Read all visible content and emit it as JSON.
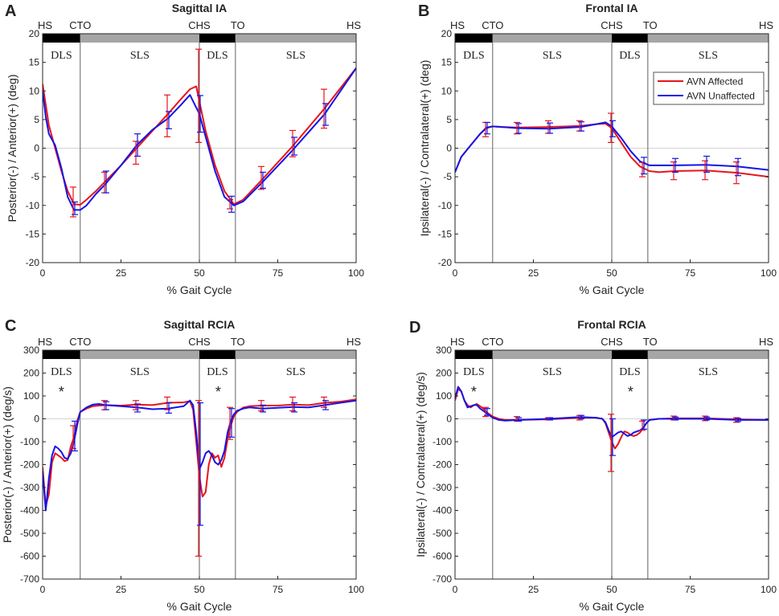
{
  "figure": {
    "x_label": "% Gait Cycle",
    "x_ticks": [
      0,
      25,
      50,
      75,
      100
    ],
    "x_range": [
      0,
      100
    ],
    "event_labels": [
      "HS",
      "CTO",
      "CHS",
      "TO",
      "HS"
    ],
    "event_positions": [
      0,
      12,
      50,
      61.5,
      100
    ],
    "phase_labels": [
      "DLS",
      "SLS",
      "DLS",
      "SLS"
    ],
    "colors": {
      "affected": "#e8141c",
      "unaffected": "#1414e6",
      "dls_bar": "#000000",
      "sls_bar": "#a6a6a6",
      "zero_line": "#d4d4d4"
    }
  },
  "legend": {
    "entries": [
      {
        "label": "AVN Affected",
        "color": "#e8141c"
      },
      {
        "label": "AVN Unaffected",
        "color": "#1414e6"
      }
    ]
  },
  "chart_data": [
    {
      "panel": "A",
      "type": "line",
      "title": "Sagittal IA",
      "xlabel": "% Gait Cycle",
      "ylabel": "Posterior(-) / Anterior(+) (deg)",
      "ylim": [
        -20,
        20
      ],
      "yticks": [
        -20,
        -15,
        -10,
        -5,
        0,
        5,
        10,
        15,
        20
      ],
      "star_annotations": [],
      "series": [
        {
          "name": "AVN Affected",
          "color": "#e8141c",
          "x": [
            0,
            2,
            4,
            6,
            8,
            10,
            12,
            14,
            17,
            20,
            25,
            30,
            35,
            40,
            44,
            47,
            49,
            50,
            52,
            55,
            58,
            61,
            64,
            70,
            80,
            90,
            100
          ],
          "y": [
            11.2,
            4,
            0,
            -4,
            -7.5,
            -9.8,
            -9.9,
            -9,
            -7.5,
            -5.8,
            -3,
            0,
            3,
            6,
            8.5,
            10.3,
            10.8,
            8.2,
            3,
            -3,
            -7.5,
            -9.8,
            -9,
            -5.5,
            0.5,
            7,
            14
          ]
        },
        {
          "name": "AVN Unaffected",
          "color": "#1414e6",
          "x": [
            0,
            1,
            2,
            4,
            6,
            8,
            10,
            12,
            14,
            17,
            20,
            25,
            30,
            35,
            40,
            44,
            47,
            50,
            52,
            55,
            58,
            61,
            64,
            70,
            80,
            90,
            100
          ],
          "y": [
            10,
            5.5,
            2.5,
            0.5,
            -3.5,
            -8.5,
            -10.8,
            -10.8,
            -10,
            -8,
            -6.3,
            -3,
            0.5,
            3.2,
            5.2,
            7.5,
            9.3,
            6,
            2,
            -4,
            -8.5,
            -10,
            -9.3,
            -6,
            -0.2,
            6,
            14
          ]
        }
      ],
      "error_bars": [
        {
          "series": "AVN Affected",
          "x": [
            10,
            20,
            30,
            40,
            50,
            60,
            70,
            80,
            90
          ],
          "y": [
            -9.4,
            -6,
            -0.8,
            5.6,
            9.2,
            -9.8,
            -5.4,
            0.8,
            6.8
          ],
          "lower": [
            -12,
            -7.8,
            -2.8,
            2,
            1,
            -10.6,
            -7.2,
            -1.5,
            3.5
          ],
          "upper": [
            -6.8,
            -4.2,
            1.2,
            9.3,
            17.3,
            -9,
            -3.2,
            3.1,
            10.3
          ]
        },
        {
          "series": "AVN Unaffected",
          "x": [
            10,
            20,
            30,
            40,
            50,
            60,
            70,
            80,
            90
          ],
          "y": [
            -10.6,
            -6.4,
            0.4,
            4.8,
            4.8,
            -9.4,
            -6,
            0.4,
            5.2
          ],
          "lower": [
            -11.6,
            -7.8,
            -1.4,
            3.4,
            2.8,
            -11.2,
            -7,
            -1.2,
            4
          ],
          "upper": [
            -9.4,
            -4,
            2.5,
            6.4,
            9.2,
            -8.4,
            -4.2,
            1.9,
            7.8
          ]
        }
      ]
    },
    {
      "panel": "B",
      "type": "line",
      "title": "Frontal IA",
      "xlabel": "% Gait Cycle",
      "ylabel": "Ipsilateral(-) / Contralateral(+) (deg)",
      "ylim": [
        -20,
        20
      ],
      "yticks": [
        -20,
        -15,
        -10,
        -5,
        0,
        5,
        10,
        15,
        20
      ],
      "star_annotations": [],
      "series": [
        {
          "name": "AVN Affected",
          "color": "#e8141c",
          "x": [
            0,
            2,
            5,
            8,
            10,
            12,
            15,
            20,
            30,
            40,
            45,
            48,
            50,
            53,
            56,
            59,
            62,
            65,
            70,
            80,
            90,
            100
          ],
          "y": [
            -4.2,
            -1.5,
            0.5,
            2.5,
            3.5,
            3.8,
            3.7,
            3.6,
            3.7,
            3.9,
            4.2,
            4.3,
            3.5,
            1,
            -1.5,
            -3.2,
            -4,
            -4.2,
            -4,
            -3.9,
            -4.3,
            -5
          ]
        },
        {
          "name": "AVN Unaffected",
          "color": "#1414e6",
          "x": [
            0,
            2,
            5,
            8,
            10,
            12,
            15,
            20,
            30,
            40,
            45,
            48,
            50,
            53,
            56,
            59,
            62,
            65,
            70,
            80,
            90,
            100
          ],
          "y": [
            -4.2,
            -1.5,
            0.5,
            2.5,
            3.6,
            3.8,
            3.7,
            3.5,
            3.4,
            3.7,
            4.2,
            4.5,
            3.8,
            1.8,
            -0.5,
            -2.3,
            -3,
            -3,
            -3,
            -2.9,
            -3.2,
            -3.8
          ]
        }
      ],
      "error_bars": [
        {
          "series": "AVN Affected",
          "x": [
            10,
            20,
            30,
            40,
            50,
            60,
            70,
            80,
            90
          ],
          "y": [
            3.5,
            3.6,
            3.8,
            3.9,
            3.5,
            -3.8,
            -4,
            -3.9,
            -4.3
          ],
          "lower": [
            2,
            2.5,
            2.6,
            3,
            1,
            -5,
            -5.5,
            -5.5,
            -6.2
          ],
          "upper": [
            4.5,
            4.5,
            4.8,
            4.8,
            6.1,
            -2.5,
            -2.4,
            -2.2,
            -2.4
          ]
        },
        {
          "series": "AVN Unaffected",
          "x": [
            10,
            20,
            30,
            40,
            50,
            60,
            70,
            80,
            90
          ],
          "y": [
            3.6,
            3.5,
            3.4,
            3.7,
            3.8,
            -3,
            -3,
            -2.9,
            -3.2
          ],
          "lower": [
            2.5,
            2.6,
            2.6,
            3,
            2,
            -4.5,
            -4.2,
            -4.2,
            -4.8
          ],
          "upper": [
            4.5,
            4.3,
            4.4,
            4.6,
            4.8,
            -1.6,
            -1.8,
            -1.4,
            -1.8
          ]
        }
      ]
    },
    {
      "panel": "C",
      "type": "line",
      "title": "Sagittal RCIA",
      "xlabel": "% Gait Cycle",
      "ylabel": "Posterior(-) / Anterior(+) (deg/s)",
      "ylim": [
        -700,
        300
      ],
      "yticks": [
        -700,
        -600,
        -500,
        -400,
        -300,
        -200,
        -100,
        0,
        100,
        200,
        300
      ],
      "star_annotations": [
        {
          "x": 6,
          "y": 125,
          "label": "*"
        },
        {
          "x": 56,
          "y": 125,
          "label": "*"
        }
      ],
      "series": [
        {
          "name": "AVN Affected",
          "color": "#e8141c",
          "x": [
            0,
            1,
            2,
            3,
            4,
            5,
            6,
            7,
            8,
            9,
            10,
            11,
            12,
            14,
            16,
            18,
            20,
            25,
            30,
            35,
            40,
            45,
            47,
            48,
            49,
            50,
            51,
            52,
            53,
            54,
            55,
            56,
            57,
            58,
            59,
            60,
            61,
            62,
            64,
            66,
            70,
            75,
            80,
            85,
            90,
            95,
            100
          ],
          "y": [
            -210,
            -380,
            -330,
            -190,
            -150,
            -160,
            -170,
            -185,
            -180,
            -120,
            -80,
            -10,
            30,
            45,
            55,
            58,
            60,
            58,
            62,
            60,
            70,
            72,
            78,
            40,
            -100,
            -250,
            -340,
            -320,
            -200,
            -150,
            -170,
            -160,
            -210,
            -170,
            -90,
            -30,
            10,
            30,
            50,
            55,
            58,
            58,
            62,
            60,
            70,
            75,
            85
          ]
        },
        {
          "name": "AVN Unaffected",
          "color": "#1414e6",
          "x": [
            0,
            1,
            2,
            3,
            4,
            5,
            6,
            7,
            8,
            9,
            10,
            11,
            12,
            14,
            16,
            18,
            20,
            25,
            30,
            35,
            40,
            45,
            47,
            48,
            49,
            50,
            51,
            52,
            53,
            54,
            55,
            56,
            57,
            58,
            59,
            60,
            61,
            62,
            64,
            66,
            70,
            75,
            80,
            85,
            90,
            95,
            100
          ],
          "y": [
            -230,
            -400,
            -260,
            -160,
            -120,
            -130,
            -145,
            -170,
            -175,
            -150,
            -100,
            -30,
            30,
            50,
            62,
            65,
            60,
            55,
            50,
            42,
            45,
            55,
            80,
            60,
            -60,
            -220,
            -190,
            -150,
            -140,
            -160,
            -190,
            -200,
            -180,
            -140,
            -60,
            -10,
            20,
            35,
            45,
            50,
            45,
            48,
            52,
            50,
            60,
            70,
            80
          ]
        }
      ],
      "error_bars": [
        {
          "series": "AVN Affected",
          "x": [
            10,
            20,
            30,
            40,
            50,
            60,
            70,
            80,
            90
          ],
          "y": [
            -80,
            60,
            60,
            70,
            -250,
            20,
            60,
            65,
            70
          ],
          "lower": [
            -130,
            40,
            40,
            40,
            -600,
            -90,
            35,
            35,
            50
          ],
          "upper": [
            -30,
            80,
            80,
            95,
            80,
            50,
            80,
            95,
            95
          ]
        },
        {
          "series": "AVN Unaffected",
          "x": [
            10,
            20,
            30,
            40,
            50,
            60,
            70,
            80,
            90
          ],
          "y": [
            -100,
            60,
            50,
            45,
            -220,
            0,
            45,
            50,
            60
          ],
          "lower": [
            -140,
            40,
            30,
            25,
            -465,
            -80,
            30,
            30,
            40
          ],
          "upper": [
            -10,
            75,
            65,
            70,
            70,
            45,
            60,
            70,
            80
          ]
        }
      ]
    },
    {
      "panel": "D",
      "type": "line",
      "title": "Frontal RCIA",
      "xlabel": "% Gait Cycle",
      "ylabel": "Ipsilateral(-) / Contralateral(+) (deg/s)",
      "ylim": [
        -700,
        300
      ],
      "yticks": [
        -700,
        -600,
        -500,
        -400,
        -300,
        -200,
        -100,
        0,
        100,
        200,
        300
      ],
      "star_annotations": [
        {
          "x": 6,
          "y": 125,
          "label": "*"
        },
        {
          "x": 56,
          "y": 125,
          "label": "*"
        }
      ],
      "series": [
        {
          "name": "AVN Affected",
          "color": "#e8141c",
          "x": [
            0,
            1,
            2,
            3,
            4,
            5,
            6,
            7,
            8,
            9,
            10,
            11,
            12,
            14,
            16,
            20,
            30,
            40,
            45,
            47,
            48,
            49,
            50,
            51,
            52,
            53,
            54,
            55,
            56,
            57,
            58,
            59,
            60,
            61,
            62,
            65,
            70,
            80,
            90,
            100
          ],
          "y": [
            80,
            130,
            120,
            80,
            60,
            50,
            60,
            65,
            55,
            45,
            30,
            20,
            10,
            0,
            -5,
            -5,
            -2,
            5,
            5,
            0,
            -20,
            -60,
            -100,
            -130,
            -110,
            -80,
            -55,
            -60,
            -70,
            -75,
            -70,
            -60,
            -40,
            -20,
            -5,
            0,
            2,
            2,
            -2,
            -5
          ]
        },
        {
          "name": "AVN Unaffected",
          "color": "#1414e6",
          "x": [
            0,
            1,
            2,
            3,
            4,
            5,
            6,
            7,
            8,
            9,
            10,
            11,
            12,
            14,
            16,
            20,
            30,
            40,
            45,
            47,
            48,
            49,
            50,
            51,
            52,
            53,
            54,
            55,
            56,
            57,
            58,
            59,
            60,
            61,
            62,
            65,
            70,
            80,
            90,
            100
          ],
          "y": [
            90,
            140,
            120,
            80,
            50,
            55,
            60,
            60,
            45,
            35,
            25,
            15,
            5,
            -5,
            -8,
            -5,
            0,
            8,
            5,
            0,
            -15,
            -50,
            -80,
            -70,
            -60,
            -55,
            -65,
            -75,
            -70,
            -60,
            -55,
            -50,
            -40,
            -20,
            -5,
            0,
            0,
            0,
            -5,
            -5
          ]
        }
      ],
      "error_bars": [
        {
          "series": "AVN Affected",
          "x": [
            10,
            20,
            30,
            40,
            50,
            60,
            70,
            80,
            90
          ],
          "y": [
            30,
            0,
            0,
            5,
            -100,
            -30,
            5,
            3,
            -5
          ],
          "lower": [
            10,
            -10,
            -5,
            -5,
            -230,
            -50,
            -5,
            -8,
            -15
          ],
          "upper": [
            50,
            10,
            5,
            15,
            20,
            -10,
            12,
            12,
            5
          ]
        },
        {
          "series": "AVN Unaffected",
          "x": [
            10,
            20,
            30,
            40,
            50,
            60,
            70,
            80,
            90
          ],
          "y": [
            25,
            -2,
            0,
            8,
            -80,
            -25,
            0,
            0,
            -5
          ],
          "lower": [
            15,
            -10,
            -5,
            0,
            -160,
            -45,
            -5,
            -5,
            -12
          ],
          "upper": [
            45,
            5,
            5,
            15,
            0,
            -5,
            8,
            8,
            2
          ]
        }
      ]
    }
  ]
}
